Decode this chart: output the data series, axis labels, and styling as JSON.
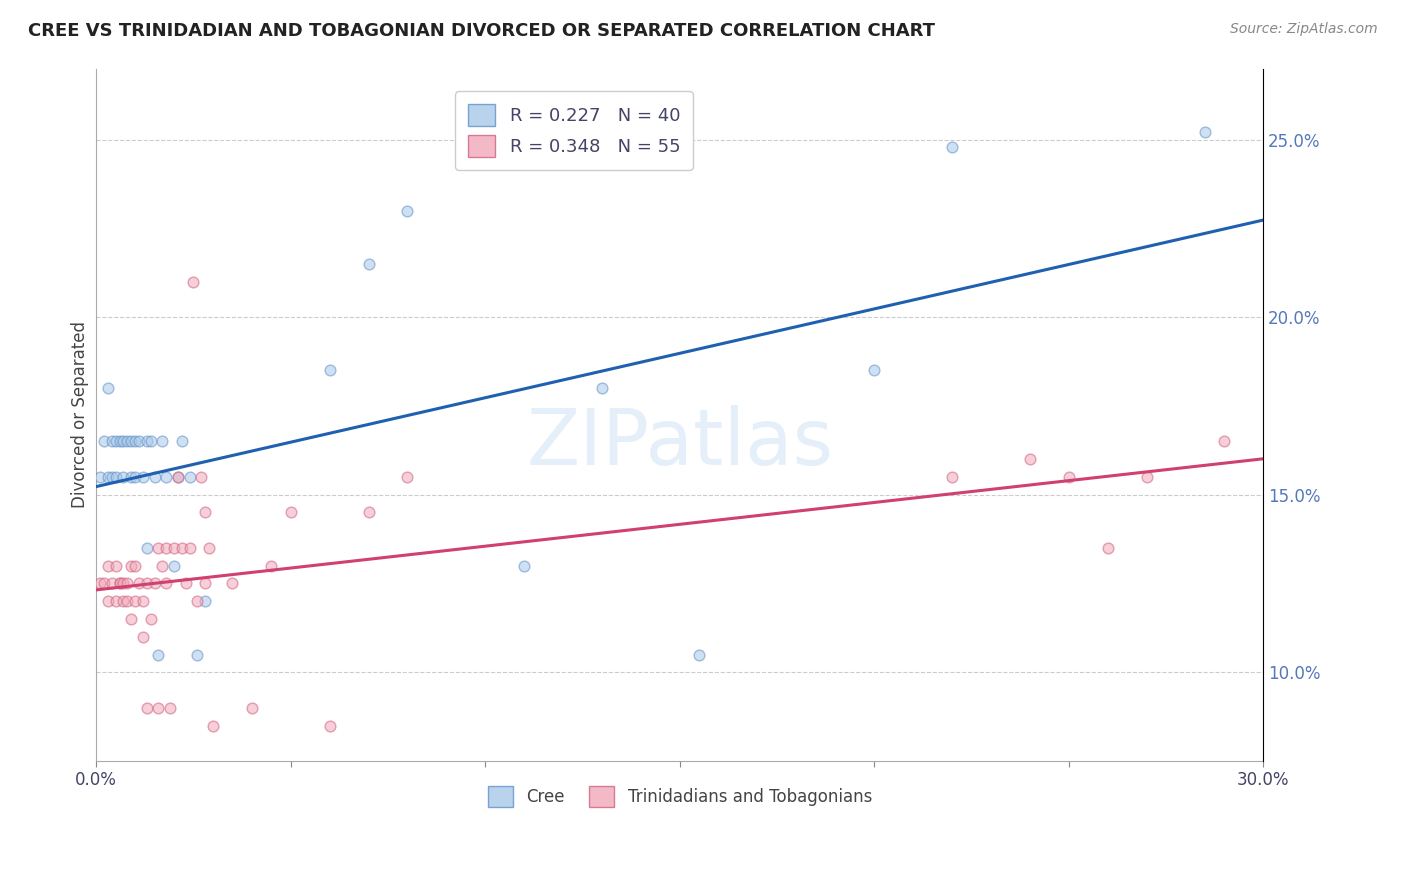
{
  "title": "CREE VS TRINIDADIAN AND TOBAGONIAN DIVORCED OR SEPARATED CORRELATION CHART",
  "source": "Source: ZipAtlas.com",
  "ylabel": "Divorced or Separated",
  "watermark": "ZIPatlas",
  "xlim": [
    0.0,
    0.3
  ],
  "ylim": [
    0.075,
    0.27
  ],
  "xtick_vals": [
    0.0,
    0.05,
    0.1,
    0.15,
    0.2,
    0.25,
    0.3
  ],
  "ytick_vals": [
    0.1,
    0.15,
    0.2,
    0.25
  ],
  "ytick_labels": [
    "10.0%",
    "15.0%",
    "20.0%",
    "25.0%"
  ],
  "xtick_labels": [
    "0.0%",
    "",
    "",
    "",
    "",
    "",
    "30.0%"
  ],
  "cree_color": "#a8c8e8",
  "tt_color": "#f0a8b8",
  "cree_edge_color": "#6090c8",
  "tt_edge_color": "#d06080",
  "cree_line_color": "#2060b0",
  "tt_line_color": "#d04070",
  "background_color": "#ffffff",
  "grid_color": "#cccccc",
  "marker_size": 60,
  "marker_alpha": 0.55,
  "cree_x": [
    0.001,
    0.002,
    0.003,
    0.003,
    0.004,
    0.004,
    0.005,
    0.005,
    0.006,
    0.007,
    0.007,
    0.008,
    0.009,
    0.009,
    0.01,
    0.01,
    0.011,
    0.012,
    0.013,
    0.013,
    0.014,
    0.015,
    0.016,
    0.017,
    0.018,
    0.02,
    0.021,
    0.022,
    0.024,
    0.026,
    0.028,
    0.06,
    0.07,
    0.08,
    0.11,
    0.13,
    0.155,
    0.2,
    0.22,
    0.285
  ],
  "cree_y": [
    0.155,
    0.165,
    0.155,
    0.18,
    0.155,
    0.165,
    0.155,
    0.165,
    0.165,
    0.155,
    0.165,
    0.165,
    0.155,
    0.165,
    0.155,
    0.165,
    0.165,
    0.155,
    0.165,
    0.135,
    0.165,
    0.155,
    0.105,
    0.165,
    0.155,
    0.13,
    0.155,
    0.165,
    0.155,
    0.105,
    0.12,
    0.185,
    0.215,
    0.23,
    0.13,
    0.18,
    0.105,
    0.185,
    0.248,
    0.252
  ],
  "tt_x": [
    0.001,
    0.002,
    0.003,
    0.003,
    0.004,
    0.005,
    0.005,
    0.006,
    0.006,
    0.007,
    0.007,
    0.008,
    0.008,
    0.009,
    0.009,
    0.01,
    0.01,
    0.011,
    0.012,
    0.012,
    0.013,
    0.013,
    0.014,
    0.015,
    0.016,
    0.016,
    0.017,
    0.018,
    0.018,
    0.019,
    0.02,
    0.021,
    0.022,
    0.023,
    0.024,
    0.025,
    0.026,
    0.027,
    0.028,
    0.028,
    0.029,
    0.03,
    0.035,
    0.04,
    0.045,
    0.05,
    0.06,
    0.07,
    0.08,
    0.22,
    0.24,
    0.25,
    0.26,
    0.27,
    0.29
  ],
  "tt_y": [
    0.125,
    0.125,
    0.13,
    0.12,
    0.125,
    0.12,
    0.13,
    0.125,
    0.125,
    0.12,
    0.125,
    0.125,
    0.12,
    0.115,
    0.13,
    0.13,
    0.12,
    0.125,
    0.11,
    0.12,
    0.09,
    0.125,
    0.115,
    0.125,
    0.09,
    0.135,
    0.13,
    0.125,
    0.135,
    0.09,
    0.135,
    0.155,
    0.135,
    0.125,
    0.135,
    0.21,
    0.12,
    0.155,
    0.125,
    0.145,
    0.135,
    0.085,
    0.125,
    0.09,
    0.13,
    0.145,
    0.085,
    0.145,
    0.155,
    0.155,
    0.16,
    0.155,
    0.135,
    0.155,
    0.165
  ],
  "legend_cree_label": "R = 0.227   N = 40",
  "legend_tt_label": "R = 0.348   N = 55",
  "bottom_cree_label": "Cree",
  "bottom_tt_label": "Trinidadians and Tobagonians"
}
